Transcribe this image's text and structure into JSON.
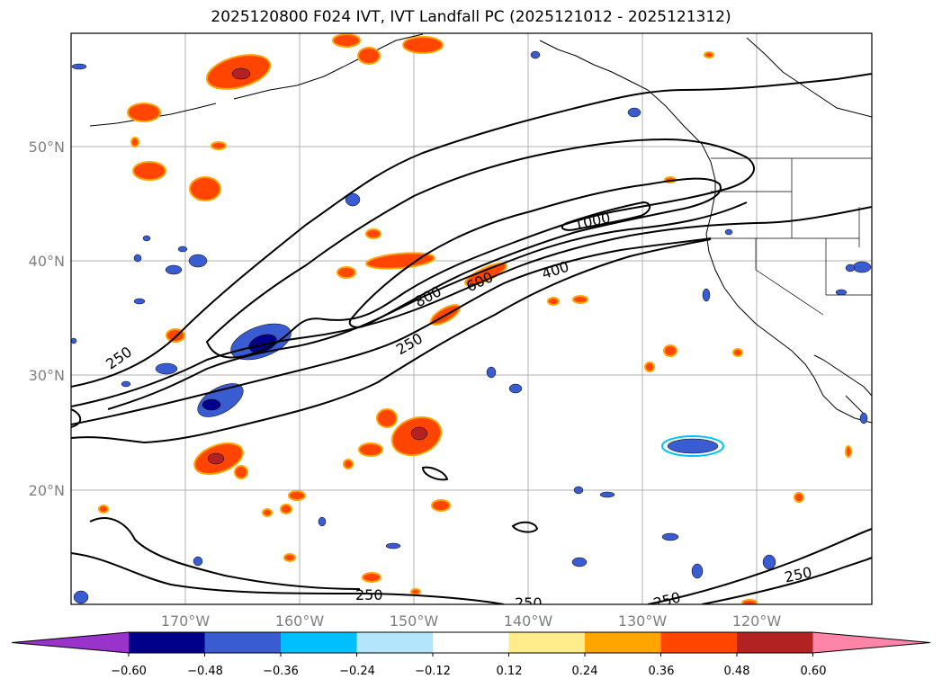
{
  "title": "2025120800 F024 IVT, IVT Landfall PC (2025121012 - 2025121312)",
  "lat_labels": [
    "50°N",
    "40°N",
    "30°N",
    "20°N"
  ],
  "lon_labels": [
    "170°W",
    "160°W",
    "150°W",
    "140°W",
    "130°W",
    "120°W"
  ],
  "ivt_contour_labels": [
    "250",
    "250",
    "800",
    "600",
    "400",
    "1000",
    "250",
    "250",
    "250",
    "250"
  ],
  "colorbar": {
    "colors": [
      "#9933cc",
      "#00008b",
      "#3a5cd1",
      "#00bfff",
      "#b3e5fc",
      "#ffffff",
      "#ffec8b",
      "#ffa500",
      "#ff4500",
      "#b22222",
      "#ff85a8"
    ],
    "tick_labels": [
      "−0.60",
      "−0.48",
      "−0.36",
      "−0.24",
      "−0.12",
      "0.12",
      "0.24",
      "0.36",
      "0.48",
      "0.60"
    ]
  }
}
